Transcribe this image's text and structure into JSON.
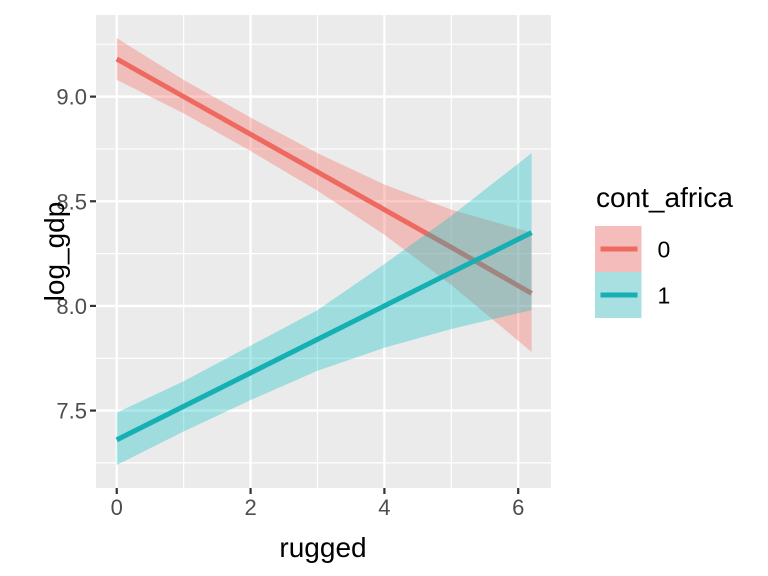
{
  "figure": {
    "background": "#FFFFFF",
    "panel_background": "#EBEBEB",
    "grid_color": "#FFFFFF",
    "tick_mark_color": "#333333",
    "tick_label_color": "#4D4D4D",
    "title_color": "#000000"
  },
  "chart_data": {
    "type": "line",
    "title": "",
    "xlabel": "rugged",
    "ylabel": "log_gdp",
    "grid": true,
    "x_domain": [
      -0.31,
      6.49
    ],
    "y_domain": [
      7.13,
      9.39
    ],
    "x_ticks": [
      0,
      2,
      4,
      6
    ],
    "x_tick_labels": [
      "0",
      "2",
      "4",
      "6"
    ],
    "x_minor_ticks": [
      1,
      3,
      5
    ],
    "y_ticks": [
      7.5,
      8.0,
      8.5,
      9.0
    ],
    "y_tick_labels": [
      "7.5",
      "8.0",
      "8.5",
      "9.0"
    ],
    "y_minor_ticks": [
      7.25,
      7.75,
      8.25,
      8.75,
      9.25
    ],
    "legend": {
      "title": "cont_africa",
      "position": "right"
    },
    "series": [
      {
        "name": "0",
        "group": "cont_africa = 0",
        "line_color": "#EE6A60",
        "fill_color": "#F8766D",
        "fill_opacity": 0.38,
        "legend_key_bg": "#F5BCBC",
        "x": [
          0,
          1,
          2,
          3,
          4,
          5,
          6.2
        ],
        "y": [
          9.18,
          9.0,
          8.82,
          8.64,
          8.46,
          8.28,
          8.06
        ],
        "upper": [
          9.28,
          9.08,
          8.9,
          8.73,
          8.58,
          8.46,
          8.35
        ],
        "lower": [
          9.08,
          8.92,
          8.74,
          8.55,
          8.34,
          8.1,
          7.78
        ]
      },
      {
        "name": "1",
        "group": "cont_africa = 1",
        "line_color": "#16AFB4",
        "fill_color": "#00BFC4",
        "fill_opacity": 0.32,
        "legend_key_bg": "#A8E0E1",
        "x": [
          0,
          1,
          2,
          3,
          4,
          5,
          6.2
        ],
        "y": [
          7.36,
          7.52,
          7.68,
          7.84,
          8.0,
          8.16,
          8.35
        ],
        "upper": [
          7.49,
          7.64,
          7.81,
          7.98,
          8.2,
          8.43,
          8.73
        ],
        "lower": [
          7.24,
          7.4,
          7.55,
          7.69,
          7.8,
          7.89,
          7.98
        ]
      }
    ]
  }
}
